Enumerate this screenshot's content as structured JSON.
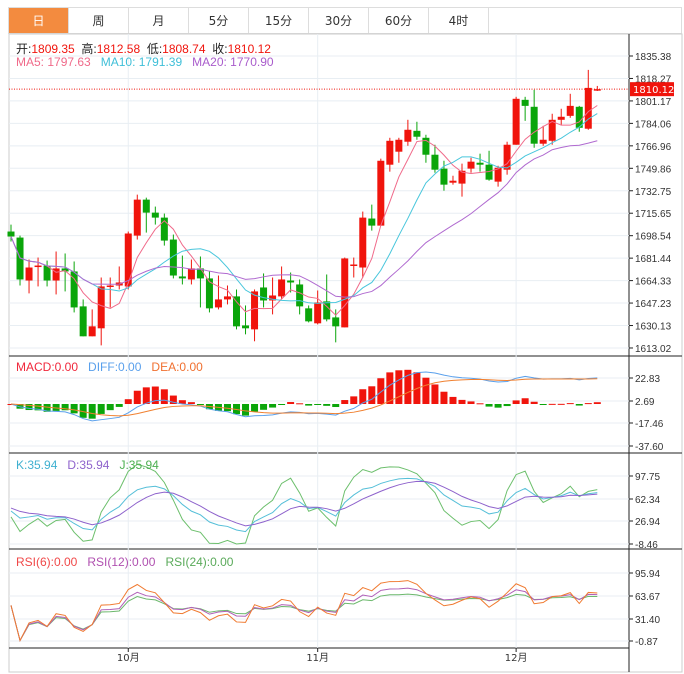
{
  "tabs": [
    {
      "label": "日",
      "active": true
    },
    {
      "label": "周"
    },
    {
      "label": "月"
    },
    {
      "label": "5分"
    },
    {
      "label": "15分"
    },
    {
      "label": "30分"
    },
    {
      "label": "60分"
    },
    {
      "label": "4时"
    }
  ],
  "ohlc_legend": {
    "open_label": "开:",
    "open": "1809.35",
    "high_label": "高:",
    "high": "1812.58",
    "low_label": "低:",
    "low": "1808.74",
    "close_label": "收:",
    "close": "1810.12"
  },
  "ma_legend": {
    "ma5": "MA5: 1797.63",
    "ma10": "MA10: 1791.39",
    "ma20": "MA20: 1770.90"
  },
  "macd_legend": {
    "macd": "MACD:0.00",
    "diff": "DIFF:0.00",
    "dea": "DEA:0.00"
  },
  "kdj_legend": {
    "k": "K:35.94",
    "d": "D:35.94",
    "j": "J:35.94"
  },
  "rsi_legend": {
    "rsi6": "RSI(6):0.00",
    "rsi12": "RSI(12):0.00",
    "rsi24": "RSI(24):0.00"
  },
  "colors": {
    "up": "#f0140c",
    "down": "#0aa50a",
    "ma5": "#f06a8a",
    "ma10": "#48c6dc",
    "ma20": "#b06ad0",
    "diff": "#5aa0ec",
    "dea": "#f08030",
    "k": "#55bfd8",
    "d": "#8e62cc",
    "j": "#6cbf6c",
    "rsi6": "#f07a30",
    "rsi12": "#b060b8",
    "rsi24": "#6cb86c",
    "tab_active": "#f38b3f"
  },
  "chart_data": {
    "type": "candlestick",
    "price_axis": {
      "ticks": [
        "1835.38",
        "1818.27",
        "1801.17",
        "1784.06",
        "1766.96",
        "1749.86",
        "1732.75",
        "1715.65",
        "1698.54",
        "1681.44",
        "1664.33",
        "1647.23",
        "1630.13",
        "1613.02"
      ],
      "range": [
        1613.02,
        1835.38
      ]
    },
    "last_price": "1810.12",
    "x_labels": [
      {
        "label": "10月",
        "index": 13
      },
      {
        "label": "11月",
        "index": 34
      },
      {
        "label": "12月",
        "index": 56
      }
    ],
    "ohlc": [
      [
        1701.7,
        1707.0,
        1694.1,
        1697.9
      ],
      [
        1697.1,
        1698.6,
        1660.6,
        1665.2
      ],
      [
        1664.4,
        1680.4,
        1654.6,
        1674.3
      ],
      [
        1675.1,
        1681.9,
        1659.9,
        1675.8
      ],
      [
        1675.8,
        1679.6,
        1659.9,
        1664.4
      ],
      [
        1664.4,
        1686.5,
        1653.8,
        1673.6
      ],
      [
        1673.6,
        1685.0,
        1656.1,
        1671.3
      ],
      [
        1671.3,
        1678.9,
        1640.1,
        1643.9
      ],
      [
        1644.7,
        1650.0,
        1621.9,
        1621.9
      ],
      [
        1621.9,
        1642.4,
        1621.9,
        1629.5
      ],
      [
        1628.0,
        1666.7,
        1615.0,
        1659.9
      ],
      [
        1659.9,
        1666.7,
        1643.9,
        1660.6
      ],
      [
        1660.6,
        1675.1,
        1657.6,
        1662.9
      ],
      [
        1659.9,
        1701.7,
        1657.6,
        1700.2
      ],
      [
        1698.6,
        1729.8,
        1695.6,
        1726.0
      ],
      [
        1726.0,
        1727.5,
        1700.9,
        1716.1
      ],
      [
        1716.1,
        1720.7,
        1707.0,
        1712.3
      ],
      [
        1712.3,
        1715.4,
        1691.0,
        1694.8
      ],
      [
        1695.6,
        1699.4,
        1666.0,
        1668.2
      ],
      [
        1667.5,
        1683.4,
        1661.4,
        1666.0
      ],
      [
        1665.2,
        1680.4,
        1661.4,
        1673.6
      ],
      [
        1673.6,
        1682.7,
        1643.9,
        1666.0
      ],
      [
        1666.0,
        1671.3,
        1640.1,
        1643.2
      ],
      [
        1643.9,
        1668.2,
        1642.4,
        1650.0
      ],
      [
        1650.0,
        1660.6,
        1646.2,
        1652.3
      ],
      [
        1652.3,
        1657.6,
        1627.2,
        1629.5
      ],
      [
        1630.2,
        1645.4,
        1623.4,
        1628.0
      ],
      [
        1627.2,
        1657.6,
        1618.1,
        1656.1
      ],
      [
        1659.1,
        1669.8,
        1643.9,
        1649.2
      ],
      [
        1649.2,
        1666.7,
        1638.6,
        1653.0
      ],
      [
        1652.3,
        1675.1,
        1650.0,
        1665.2
      ],
      [
        1664.4,
        1670.5,
        1655.3,
        1662.9
      ],
      [
        1661.4,
        1665.2,
        1638.6,
        1644.7
      ],
      [
        1643.2,
        1645.4,
        1632.5,
        1633.3
      ],
      [
        1631.8,
        1656.8,
        1631.0,
        1647.7
      ],
      [
        1648.5,
        1669.0,
        1633.3,
        1634.8
      ],
      [
        1636.3,
        1642.4,
        1617.3,
        1629.5
      ],
      [
        1628.7,
        1681.9,
        1628.7,
        1681.2
      ],
      [
        1675.8,
        1681.9,
        1666.7,
        1676.6
      ],
      [
        1674.3,
        1716.9,
        1666.7,
        1712.3
      ],
      [
        1711.6,
        1722.2,
        1702.4,
        1706.2
      ],
      [
        1706.2,
        1757.2,
        1706.2,
        1755.6
      ],
      [
        1752.6,
        1773.1,
        1747.3,
        1770.8
      ],
      [
        1762.5,
        1773.1,
        1754.1,
        1771.6
      ],
      [
        1770.1,
        1786.8,
        1767.0,
        1779.2
      ],
      [
        1778.4,
        1785.3,
        1771.6,
        1773.9
      ],
      [
        1773.1,
        1775.4,
        1754.1,
        1760.2
      ],
      [
        1760.2,
        1767.8,
        1746.5,
        1748.8
      ],
      [
        1749.6,
        1755.6,
        1732.8,
        1737.4
      ],
      [
        1738.9,
        1744.2,
        1737.4,
        1740.4
      ],
      [
        1738.2,
        1753.4,
        1728.3,
        1748.0
      ],
      [
        1749.6,
        1757.9,
        1746.5,
        1754.9
      ],
      [
        1754.1,
        1761.0,
        1747.3,
        1752.6
      ],
      [
        1752.6,
        1763.2,
        1740.4,
        1741.2
      ],
      [
        1739.7,
        1751.8,
        1735.9,
        1750.3
      ],
      [
        1748.8,
        1770.1,
        1745.0,
        1767.8
      ],
      [
        1767.8,
        1804.3,
        1767.8,
        1802.8
      ],
      [
        1802.0,
        1804.3,
        1786.0,
        1797.4
      ],
      [
        1796.7,
        1809.6,
        1765.5,
        1768.6
      ],
      [
        1768.6,
        1782.2,
        1767.0,
        1771.6
      ],
      [
        1770.8,
        1791.4,
        1767.8,
        1786.8
      ],
      [
        1786.8,
        1795.2,
        1783.0,
        1789.1
      ],
      [
        1789.8,
        1806.6,
        1788.3,
        1797.4
      ],
      [
        1796.7,
        1797.4,
        1777.7,
        1780.7
      ],
      [
        1780.0,
        1824.8,
        1779.2,
        1811.1
      ],
      [
        1809.35,
        1812.58,
        1808.74,
        1810.12
      ]
    ],
    "macd_axis": {
      "ticks": [
        "22.83",
        "2.69",
        "-17.46",
        "-37.60"
      ]
    },
    "kdj_axis": {
      "ticks": [
        "97.75",
        "62.34",
        "26.94",
        "-8.46"
      ]
    },
    "rsi_axis": {
      "ticks": [
        "95.94",
        "63.67",
        "31.40",
        "-0.87"
      ]
    }
  }
}
